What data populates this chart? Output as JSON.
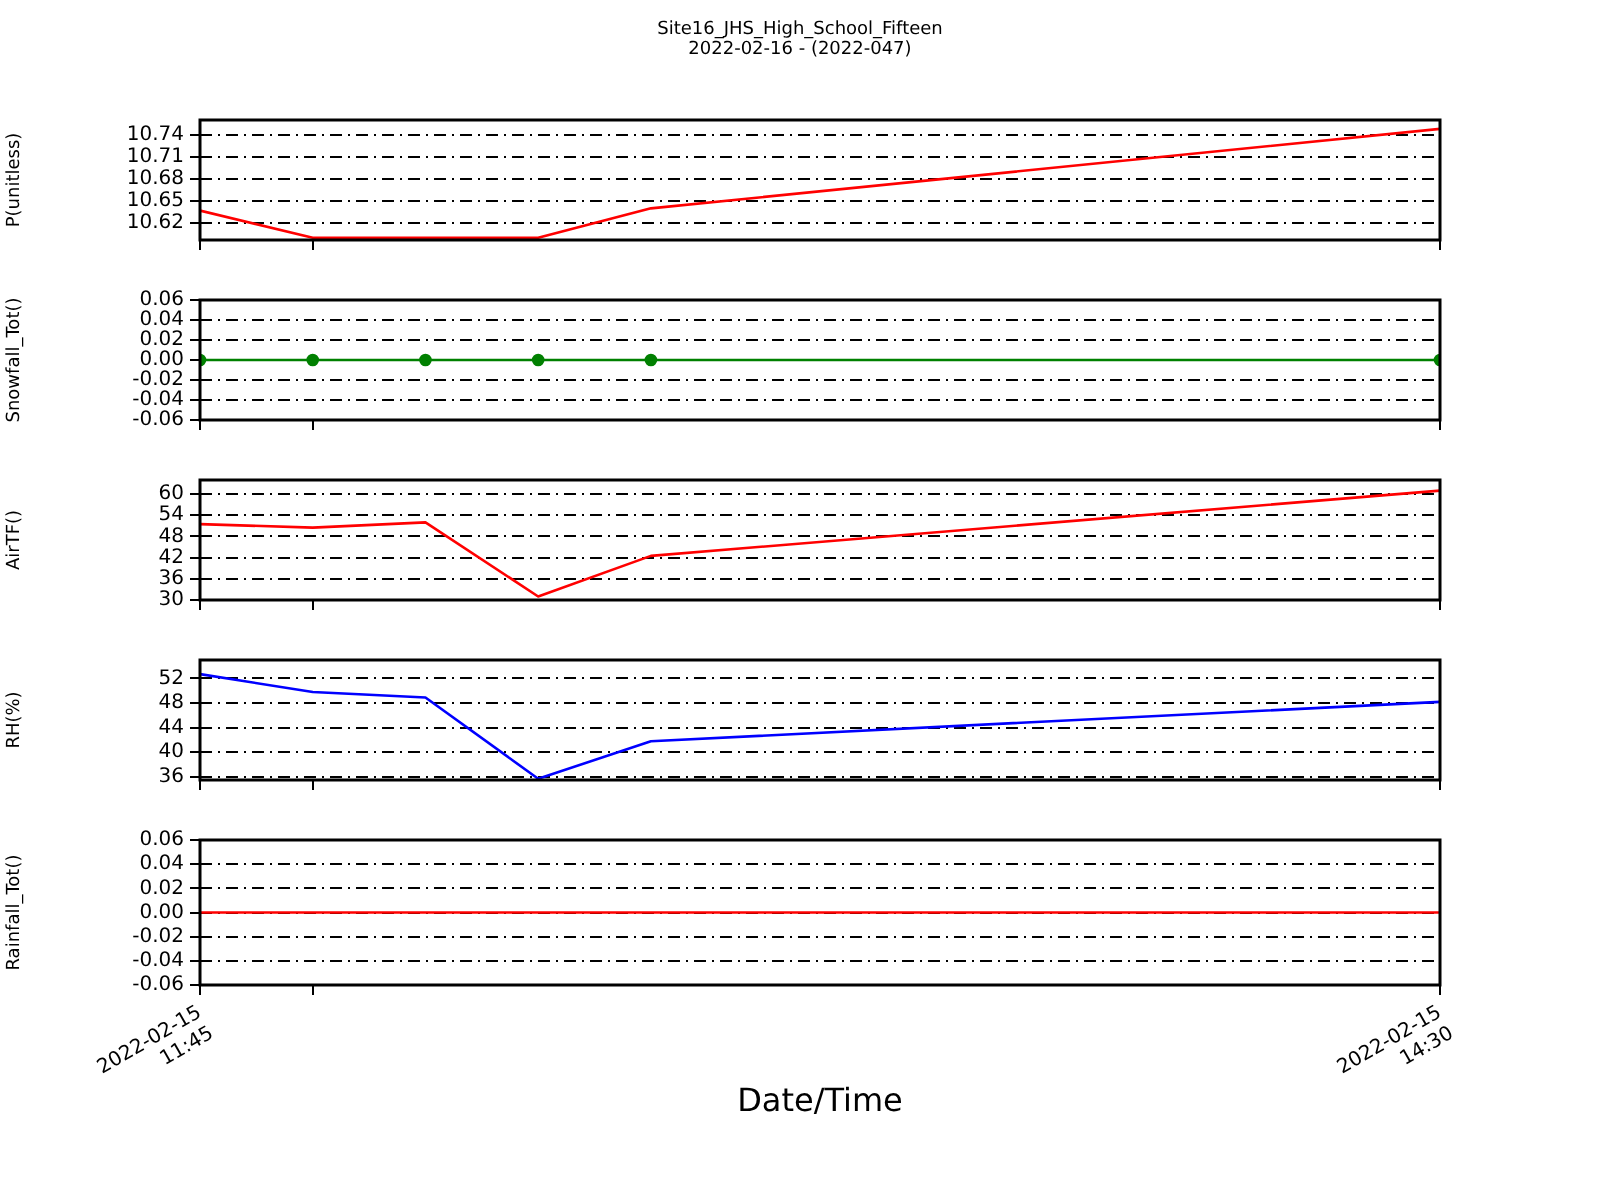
{
  "chart_data": [
    {
      "type": "line",
      "title": "Site16_JHS_High_School_Fifteen",
      "subtitle": "2022-02-16 - (2022-047)",
      "ylabel": "P(unitless)",
      "x": [
        "2022-02-15T11:45",
        "2022-02-15T12:00",
        "2022-02-15T12:15",
        "2022-02-15T12:30",
        "2022-02-15T12:45",
        "2022-02-15T14:30"
      ],
      "series": [
        {
          "color": "#ff0000",
          "values": [
            10.637,
            10.6,
            10.6,
            10.6,
            10.64,
            10.748
          ]
        }
      ],
      "xlim": [
        "2022-02-15T11:45",
        "2022-02-15T14:30"
      ],
      "xticks": [
        {
          "value": "2022-02-15T11:45",
          "label": null
        },
        {
          "value": "2022-02-15T12:00",
          "label": null
        },
        {
          "value": "2022-02-15T14:30",
          "label": null
        }
      ],
      "ylim": [
        10.597,
        10.76
      ],
      "yticks": [
        10.62,
        10.65,
        10.68,
        10.71,
        10.74
      ],
      "grid": "y",
      "tick_labels": "y",
      "marker": "none"
    },
    {
      "type": "line",
      "ylabel": "Snowfall_Tot()",
      "x": [
        "2022-02-15T11:45",
        "2022-02-15T12:00",
        "2022-02-15T12:15",
        "2022-02-15T12:30",
        "2022-02-15T12:45",
        "2022-02-15T14:30"
      ],
      "series": [
        {
          "color": "#008000",
          "values": [
            0,
            0,
            0,
            0,
            0,
            0
          ]
        }
      ],
      "xlim": [
        "2022-02-15T11:45",
        "2022-02-15T14:30"
      ],
      "xticks": [
        {
          "value": "2022-02-15T11:45",
          "label": null
        },
        {
          "value": "2022-02-15T12:00",
          "label": null
        },
        {
          "value": "2022-02-15T14:30",
          "label": null
        }
      ],
      "ylim": [
        -0.06,
        0.06
      ],
      "yticks": [
        -0.06,
        -0.04,
        -0.02,
        {
          "value": 0,
          "label": "0.00"
        },
        0.02,
        0.04,
        0.06
      ],
      "grid": "y",
      "tick_labels": "y",
      "marker": "circle"
    },
    {
      "type": "line",
      "ylabel": "AirTF()",
      "x": [
        "2022-02-15T11:45",
        "2022-02-15T12:00",
        "2022-02-15T12:15",
        "2022-02-15T12:30",
        "2022-02-15T12:45",
        "2022-02-15T14:30"
      ],
      "series": [
        {
          "color": "#ff0000",
          "values": [
            51.5,
            50.5,
            52,
            31,
            42.5,
            61
          ]
        }
      ],
      "xlim": [
        "2022-02-15T11:45",
        "2022-02-15T14:30"
      ],
      "xticks": [
        {
          "value": "2022-02-15T11:45",
          "label": null
        },
        {
          "value": "2022-02-15T12:00",
          "label": null
        },
        {
          "value": "2022-02-15T14:30",
          "label": null
        }
      ],
      "ylim": [
        30,
        64
      ],
      "yticks": [
        30,
        36,
        42,
        48,
        54,
        60
      ],
      "grid": "y",
      "tick_labels": "y",
      "marker": "none"
    },
    {
      "type": "line",
      "ylabel": "RH(%)",
      "x": [
        "2022-02-15T11:45",
        "2022-02-15T12:00",
        "2022-02-15T12:15",
        "2022-02-15T12:30",
        "2022-02-15T12:45",
        "2022-02-15T14:30"
      ],
      "series": [
        {
          "color": "#0000ff",
          "values": [
            52.7,
            49.8,
            48.9,
            35.7,
            41.8,
            48.2
          ]
        }
      ],
      "xlim": [
        "2022-02-15T11:45",
        "2022-02-15T14:30"
      ],
      "xticks": [
        {
          "value": "2022-02-15T11:45",
          "label": null
        },
        {
          "value": "2022-02-15T12:00",
          "label": null
        },
        {
          "value": "2022-02-15T14:30",
          "label": null
        }
      ],
      "ylim": [
        35.5,
        55
      ],
      "yticks": [
        36,
        40,
        44,
        48,
        52
      ],
      "grid": "y",
      "tick_labels": "y",
      "marker": "none"
    },
    {
      "type": "line",
      "ylabel": "Rainfall_Tot()",
      "xlabel": "Date/Time",
      "x": [
        "2022-02-15T11:45",
        "2022-02-15T12:00",
        "2022-02-15T12:15",
        "2022-02-15T12:30",
        "2022-02-15T12:45",
        "2022-02-15T14:30"
      ],
      "series": [
        {
          "color": "#ff0000",
          "values": [
            0,
            0,
            0,
            0,
            0,
            0
          ]
        }
      ],
      "xlim": [
        "2022-02-15T11:45",
        "2022-02-15T14:30"
      ],
      "xticks": [
        {
          "value": "2022-02-15T11:45",
          "label": "2022-02-15 11:45"
        },
        {
          "value": "2022-02-15T12:00",
          "label": null
        },
        {
          "value": "2022-02-15T14:30",
          "label": "2022-02-15 14:30"
        }
      ],
      "ylim": [
        -0.06,
        0.06
      ],
      "yticks": [
        -0.06,
        -0.04,
        -0.02,
        {
          "value": 0,
          "label": "0.00"
        },
        0.02,
        0.04,
        0.06
      ],
      "grid": "y",
      "marker": "none"
    }
  ]
}
